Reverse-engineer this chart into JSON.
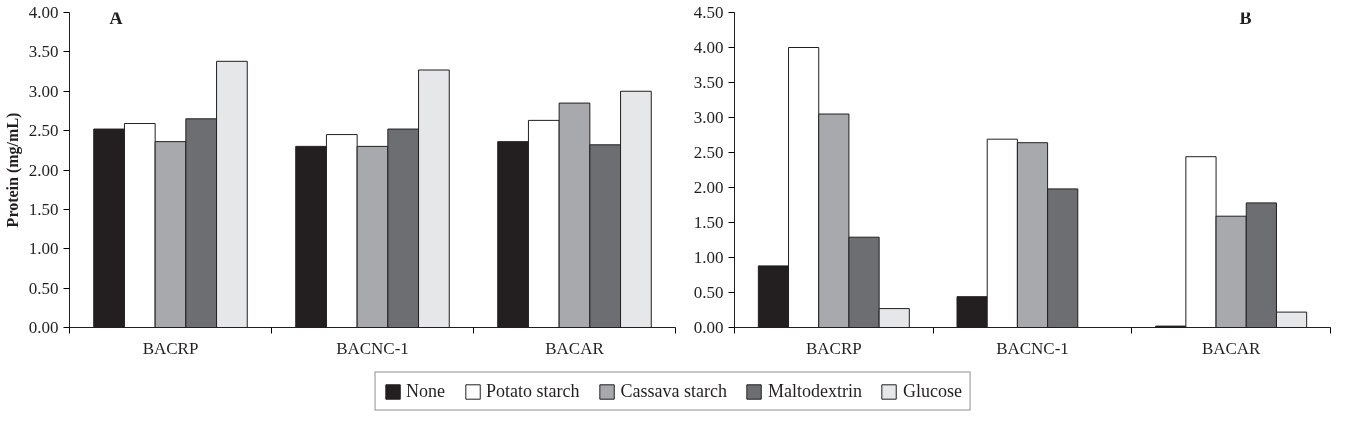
{
  "chart_data": [
    {
      "type": "bar",
      "ylabel": "Protein (mg/mL)",
      "annotations": [
        "A"
      ],
      "categories": [
        "BACRP",
        "BACNC-1",
        "BACAR"
      ],
      "ylim": [
        0,
        4
      ],
      "yticks": [
        {
          "value": 0,
          "label": "0.00"
        },
        {
          "value": 0.5,
          "label": "0.50"
        },
        {
          "value": 1,
          "label": "1.00"
        },
        {
          "value": 1.5,
          "label": "1.50"
        },
        {
          "value": 2,
          "label": "2.00"
        },
        {
          "value": 2.5,
          "label": "2.50"
        },
        {
          "value": 3,
          "label": "3.00"
        },
        {
          "value": 3.5,
          "label": "3.50"
        },
        {
          "value": 4,
          "label": "4.00"
        }
      ],
      "grid": false,
      "legend": "bottom",
      "series": [
        {
          "name": "None",
          "color": "#231f20",
          "values": [
            2.52,
            2.3,
            2.36
          ]
        },
        {
          "name": "Potato starch",
          "color": "#ffffff",
          "values": [
            2.59,
            2.45,
            2.63
          ]
        },
        {
          "name": "Cassava starch",
          "color": "#a7a9ac",
          "values": [
            2.36,
            2.3,
            2.85
          ]
        },
        {
          "name": "Maltodextrin",
          "color": "#6d6e71",
          "values": [
            2.65,
            2.52,
            2.32
          ]
        },
        {
          "name": "Glucose",
          "color": "#e6e7e8",
          "values": [
            3.38,
            3.27,
            3.0
          ]
        }
      ]
    },
    {
      "type": "bar",
      "annotations": [
        "B"
      ],
      "categories": [
        "BACRP",
        "BACNC-1",
        "BACAR"
      ],
      "ylim": [
        0,
        4.5
      ],
      "yticks": [
        {
          "value": 0,
          "label": "0.00"
        },
        {
          "value": 0.5,
          "label": "0.50"
        },
        {
          "value": 1,
          "label": "1.00"
        },
        {
          "value": 1.5,
          "label": "1.50"
        },
        {
          "value": 2,
          "label": "2.00"
        },
        {
          "value": 2.5,
          "label": "2.50"
        },
        {
          "value": 3,
          "label": "3.00"
        },
        {
          "value": 3.5,
          "label": "3.50"
        },
        {
          "value": 4,
          "label": "4.00"
        },
        {
          "value": 4.5,
          "label": "4.50"
        }
      ],
      "grid": false,
      "series": [
        {
          "name": "None",
          "color": "#231f20",
          "values": [
            0.88,
            0.44,
            0.02
          ]
        },
        {
          "name": "Potato starch",
          "color": "#ffffff",
          "values": [
            4.0,
            2.69,
            2.44
          ]
        },
        {
          "name": "Cassava starch",
          "color": "#a7a9ac",
          "values": [
            3.05,
            2.64,
            1.59
          ]
        },
        {
          "name": "Maltodextrin",
          "color": "#6d6e71",
          "values": [
            1.29,
            1.98,
            1.78
          ]
        },
        {
          "name": "Glucose",
          "color": "#e6e7e8",
          "values": [
            0.27,
            null,
            0.22
          ]
        }
      ]
    }
  ]
}
